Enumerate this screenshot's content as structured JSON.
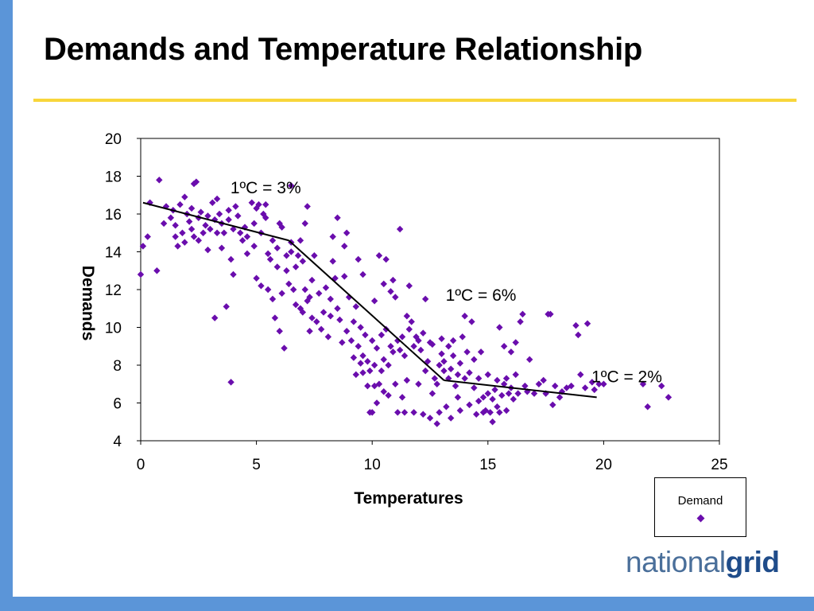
{
  "slide": {
    "title": "Demands and Temperature Relationship"
  },
  "logo": {
    "part1": "national",
    "part2": "grid"
  },
  "colors": {
    "accent_bar": "#5b95d8",
    "title_rule": "#f8d63b",
    "marker": "#6a0dad",
    "trend_line": "#000000"
  },
  "chart_data": {
    "type": "scatter",
    "title": "",
    "xlabel": "Temperatures",
    "ylabel": "Demands",
    "xlim": [
      0,
      25
    ],
    "ylim": [
      4,
      20
    ],
    "xticks": [
      0,
      5,
      10,
      15,
      20,
      25
    ],
    "yticks": [
      4,
      6,
      8,
      10,
      12,
      14,
      16,
      18,
      20
    ],
    "grid": false,
    "legend": {
      "position": "bottom-right",
      "entries": [
        "Demand"
      ]
    },
    "series": [
      {
        "name": "Demand",
        "marker": "diamond",
        "points": [
          [
            0.0,
            12.8
          ],
          [
            0.1,
            14.3
          ],
          [
            0.3,
            14.8
          ],
          [
            0.4,
            16.6
          ],
          [
            0.7,
            13.0
          ],
          [
            0.8,
            17.8
          ],
          [
            1.0,
            15.5
          ],
          [
            1.1,
            16.4
          ],
          [
            1.3,
            15.8
          ],
          [
            1.4,
            16.2
          ],
          [
            1.5,
            15.4
          ],
          [
            1.5,
            14.8
          ],
          [
            1.6,
            14.3
          ],
          [
            1.7,
            16.5
          ],
          [
            1.8,
            15.0
          ],
          [
            1.9,
            14.5
          ],
          [
            1.9,
            16.9
          ],
          [
            2.0,
            16.0
          ],
          [
            2.1,
            15.6
          ],
          [
            2.2,
            15.2
          ],
          [
            2.2,
            16.3
          ],
          [
            2.3,
            14.8
          ],
          [
            2.3,
            17.6
          ],
          [
            2.4,
            17.7
          ],
          [
            2.5,
            15.8
          ],
          [
            2.5,
            14.6
          ],
          [
            2.6,
            16.1
          ],
          [
            2.7,
            15.0
          ],
          [
            2.8,
            15.4
          ],
          [
            2.9,
            15.9
          ],
          [
            2.9,
            14.1
          ],
          [
            3.0,
            15.2
          ],
          [
            3.1,
            16.6
          ],
          [
            3.2,
            15.7
          ],
          [
            3.2,
            10.5
          ],
          [
            3.3,
            16.8
          ],
          [
            3.3,
            15.0
          ],
          [
            3.4,
            16.0
          ],
          [
            3.5,
            15.5
          ],
          [
            3.5,
            14.2
          ],
          [
            3.6,
            15.0
          ],
          [
            3.7,
            11.1
          ],
          [
            3.8,
            16.2
          ],
          [
            3.8,
            15.7
          ],
          [
            3.9,
            7.1
          ],
          [
            3.9,
            13.6
          ],
          [
            4.0,
            12.8
          ],
          [
            4.0,
            15.2
          ],
          [
            4.1,
            16.4
          ],
          [
            4.2,
            15.9
          ],
          [
            4.3,
            15.0
          ],
          [
            4.4,
            14.6
          ],
          [
            4.5,
            15.3
          ],
          [
            4.6,
            14.8
          ],
          [
            4.6,
            13.9
          ],
          [
            4.8,
            16.6
          ],
          [
            4.9,
            15.5
          ],
          [
            4.9,
            14.3
          ],
          [
            5.0,
            12.6
          ],
          [
            5.0,
            16.3
          ],
          [
            5.1,
            16.5
          ],
          [
            5.2,
            15.0
          ],
          [
            5.2,
            12.2
          ],
          [
            5.3,
            16.0
          ],
          [
            5.4,
            16.5
          ],
          [
            5.4,
            15.8
          ],
          [
            5.5,
            13.9
          ],
          [
            5.5,
            12.0
          ],
          [
            5.6,
            13.6
          ],
          [
            5.7,
            11.5
          ],
          [
            5.7,
            14.6
          ],
          [
            5.8,
            10.5
          ],
          [
            5.9,
            14.2
          ],
          [
            5.9,
            13.2
          ],
          [
            6.0,
            15.5
          ],
          [
            6.0,
            9.8
          ],
          [
            6.1,
            15.3
          ],
          [
            6.1,
            11.8
          ],
          [
            6.2,
            8.9
          ],
          [
            6.3,
            13.8
          ],
          [
            6.3,
            13.0
          ],
          [
            6.4,
            12.3
          ],
          [
            6.5,
            14.5
          ],
          [
            6.5,
            14.0
          ],
          [
            6.5,
            17.5
          ],
          [
            6.6,
            12.0
          ],
          [
            6.7,
            11.2
          ],
          [
            6.7,
            13.2
          ],
          [
            6.8,
            13.8
          ],
          [
            6.9,
            14.6
          ],
          [
            6.9,
            11.0
          ],
          [
            7.0,
            13.5
          ],
          [
            7.0,
            10.8
          ],
          [
            7.1,
            12.0
          ],
          [
            7.1,
            15.5
          ],
          [
            7.2,
            16.4
          ],
          [
            7.2,
            11.4
          ],
          [
            7.3,
            9.8
          ],
          [
            7.3,
            11.6
          ],
          [
            7.4,
            12.5
          ],
          [
            7.4,
            10.5
          ],
          [
            7.5,
            13.8
          ],
          [
            7.6,
            10.3
          ],
          [
            7.7,
            11.8
          ],
          [
            7.8,
            9.9
          ],
          [
            7.9,
            10.8
          ],
          [
            8.0,
            12.1
          ],
          [
            8.1,
            9.5
          ],
          [
            8.2,
            11.5
          ],
          [
            8.2,
            10.6
          ],
          [
            8.3,
            14.8
          ],
          [
            8.3,
            13.5
          ],
          [
            8.4,
            12.6
          ],
          [
            8.5,
            15.8
          ],
          [
            8.5,
            11.0
          ],
          [
            8.6,
            10.4
          ],
          [
            8.7,
            9.2
          ],
          [
            8.8,
            14.3
          ],
          [
            8.8,
            12.7
          ],
          [
            8.9,
            9.8
          ],
          [
            8.9,
            15.0
          ],
          [
            9.0,
            11.6
          ],
          [
            9.1,
            9.3
          ],
          [
            9.2,
            8.4
          ],
          [
            9.2,
            10.3
          ],
          [
            9.3,
            11.1
          ],
          [
            9.3,
            7.5
          ],
          [
            9.4,
            9.0
          ],
          [
            9.4,
            13.6
          ],
          [
            9.5,
            8.1
          ],
          [
            9.5,
            10.0
          ],
          [
            9.6,
            12.8
          ],
          [
            9.6,
            8.5
          ],
          [
            9.6,
            7.6
          ],
          [
            9.7,
            9.6
          ],
          [
            9.8,
            8.2
          ],
          [
            9.8,
            6.9
          ],
          [
            9.9,
            5.5
          ],
          [
            9.9,
            7.7
          ],
          [
            10.0,
            5.5
          ],
          [
            10.0,
            9.3
          ],
          [
            10.1,
            8.0
          ],
          [
            10.1,
            6.9
          ],
          [
            10.1,
            11.4
          ],
          [
            10.2,
            6.0
          ],
          [
            10.2,
            8.9
          ],
          [
            10.3,
            13.8
          ],
          [
            10.3,
            7.0
          ],
          [
            10.4,
            9.6
          ],
          [
            10.4,
            7.7
          ],
          [
            10.5,
            12.3
          ],
          [
            10.5,
            8.3
          ],
          [
            10.5,
            6.6
          ],
          [
            10.6,
            9.9
          ],
          [
            10.6,
            13.6
          ],
          [
            10.7,
            8.0
          ],
          [
            10.7,
            6.4
          ],
          [
            10.8,
            11.9
          ],
          [
            10.8,
            9.0
          ],
          [
            10.9,
            12.5
          ],
          [
            10.9,
            8.7
          ],
          [
            11.0,
            11.6
          ],
          [
            11.0,
            7.0
          ],
          [
            11.1,
            9.3
          ],
          [
            11.1,
            5.5
          ],
          [
            11.2,
            8.8
          ],
          [
            11.2,
            15.2
          ],
          [
            11.3,
            9.5
          ],
          [
            11.3,
            6.3
          ],
          [
            11.4,
            8.5
          ],
          [
            11.4,
            5.5
          ],
          [
            11.5,
            10.6
          ],
          [
            11.5,
            7.2
          ],
          [
            11.6,
            9.9
          ],
          [
            11.6,
            12.2
          ],
          [
            11.7,
            10.3
          ],
          [
            11.8,
            5.5
          ],
          [
            11.8,
            9.0
          ],
          [
            11.9,
            9.5
          ],
          [
            12.0,
            7.0
          ],
          [
            12.0,
            9.3
          ],
          [
            12.1,
            8.8
          ],
          [
            12.2,
            9.7
          ],
          [
            12.2,
            5.4
          ],
          [
            12.3,
            7.7
          ],
          [
            12.3,
            11.5
          ],
          [
            12.4,
            8.2
          ],
          [
            12.5,
            9.2
          ],
          [
            12.5,
            5.2
          ],
          [
            12.6,
            6.5
          ],
          [
            12.6,
            9.1
          ],
          [
            12.7,
            7.3
          ],
          [
            12.8,
            4.9
          ],
          [
            12.8,
            7.0
          ],
          [
            12.9,
            8.0
          ],
          [
            12.9,
            5.5
          ],
          [
            13.0,
            9.4
          ],
          [
            13.0,
            8.6
          ],
          [
            13.1,
            7.7
          ],
          [
            13.1,
            8.2
          ],
          [
            13.2,
            5.8
          ],
          [
            13.3,
            7.3
          ],
          [
            13.3,
            9.0
          ],
          [
            13.4,
            5.2
          ],
          [
            13.4,
            7.8
          ],
          [
            13.5,
            8.5
          ],
          [
            13.5,
            9.3
          ],
          [
            13.6,
            6.9
          ],
          [
            13.7,
            7.5
          ],
          [
            13.7,
            6.3
          ],
          [
            13.8,
            5.6
          ],
          [
            13.8,
            8.1
          ],
          [
            13.9,
            9.5
          ],
          [
            14.0,
            10.6
          ],
          [
            14.0,
            7.3
          ],
          [
            14.1,
            8.7
          ],
          [
            14.2,
            5.9
          ],
          [
            14.2,
            7.6
          ],
          [
            14.3,
            10.3
          ],
          [
            14.4,
            8.3
          ],
          [
            14.4,
            6.8
          ],
          [
            14.5,
            5.4
          ],
          [
            14.6,
            7.3
          ],
          [
            14.6,
            6.1
          ],
          [
            14.7,
            8.7
          ],
          [
            14.8,
            6.3
          ],
          [
            14.8,
            5.5
          ],
          [
            14.9,
            5.6
          ],
          [
            15.0,
            6.5
          ],
          [
            15.0,
            7.5
          ],
          [
            15.1,
            5.5
          ],
          [
            15.2,
            6.2
          ],
          [
            15.2,
            5.0
          ],
          [
            15.3,
            6.7
          ],
          [
            15.4,
            5.8
          ],
          [
            15.4,
            7.2
          ],
          [
            15.5,
            5.5
          ],
          [
            15.5,
            10.0
          ],
          [
            15.6,
            6.4
          ],
          [
            15.7,
            9.0
          ],
          [
            15.7,
            7.0
          ],
          [
            15.8,
            7.3
          ],
          [
            15.8,
            5.6
          ],
          [
            15.9,
            6.5
          ],
          [
            16.0,
            6.8
          ],
          [
            16.0,
            8.7
          ],
          [
            16.1,
            6.2
          ],
          [
            16.2,
            9.2
          ],
          [
            16.2,
            7.5
          ],
          [
            16.3,
            6.5
          ],
          [
            16.4,
            10.3
          ],
          [
            16.5,
            10.7
          ],
          [
            16.6,
            6.9
          ],
          [
            16.7,
            6.6
          ],
          [
            16.8,
            8.3
          ],
          [
            17.0,
            6.5
          ],
          [
            17.2,
            7.0
          ],
          [
            17.4,
            7.2
          ],
          [
            17.5,
            6.5
          ],
          [
            17.6,
            10.7
          ],
          [
            17.7,
            10.7
          ],
          [
            17.8,
            5.9
          ],
          [
            17.9,
            6.9
          ],
          [
            18.1,
            6.3
          ],
          [
            18.2,
            6.6
          ],
          [
            18.4,
            6.8
          ],
          [
            18.6,
            6.9
          ],
          [
            18.8,
            10.1
          ],
          [
            18.9,
            9.6
          ],
          [
            19.0,
            7.5
          ],
          [
            19.2,
            6.8
          ],
          [
            19.3,
            10.2
          ],
          [
            19.5,
            7.1
          ],
          [
            19.6,
            6.7
          ],
          [
            19.8,
            7.0
          ],
          [
            20.0,
            7.0
          ],
          [
            21.7,
            7.0
          ],
          [
            21.9,
            5.8
          ],
          [
            22.5,
            6.9
          ],
          [
            22.8,
            6.3
          ]
        ]
      }
    ],
    "trend_line": [
      [
        0.1,
        16.6
      ],
      [
        6.4,
        14.6
      ],
      [
        13.1,
        7.2
      ],
      [
        19.7,
        6.3
      ]
    ],
    "annotations": [
      {
        "text": "1ºC = 3%",
        "x": 5.4,
        "y": 17.4
      },
      {
        "text": "1ºC = 6%",
        "x": 14.7,
        "y": 11.7
      },
      {
        "text": "1ºC = 2%",
        "x": 21.0,
        "y": 7.4
      }
    ]
  }
}
